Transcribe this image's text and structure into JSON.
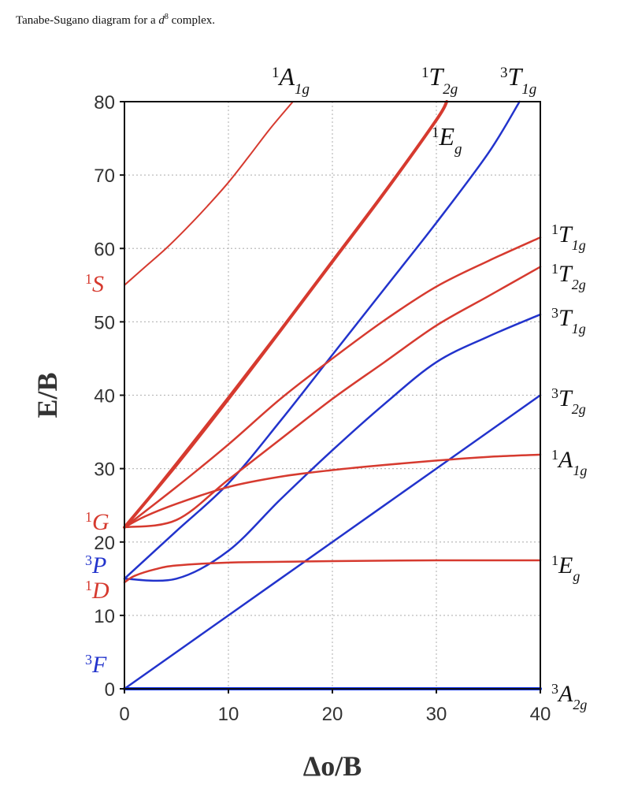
{
  "caption": {
    "prefix": "Tanabe-Sugano diagram for a ",
    "d": "d",
    "sup": "8",
    "suffix": " complex."
  },
  "chart_data": {
    "type": "line",
    "title": "Tanabe-Sugano diagram for a d8 complex.",
    "xlabel": "Δo/B",
    "ylabel": "E/B",
    "xlim": [
      0,
      40
    ],
    "ylim": [
      0,
      80
    ],
    "x_ticks": [
      "0",
      "10",
      "20",
      "30",
      "40"
    ],
    "y_ticks": [
      "0",
      "10",
      "20",
      "30",
      "40",
      "50",
      "60",
      "70",
      "80"
    ],
    "grid": true,
    "colors": {
      "singlet": "#d63a2f",
      "triplet": "#2233cc",
      "grid": "#bbbbbb"
    },
    "free_ion_terms": [
      {
        "sup": "1",
        "term": "S",
        "energy": 55,
        "color": "#d63a2f"
      },
      {
        "sup": "1",
        "term": "G",
        "energy": 22,
        "color": "#d63a2f"
      },
      {
        "sup": "3",
        "term": "P",
        "energy": 15,
        "color": "#2233cc"
      },
      {
        "sup": "1",
        "term": "D",
        "energy": 14.5,
        "color": "#d63a2f"
      },
      {
        "sup": "3",
        "term": "F",
        "energy": 0,
        "color": "#2233cc"
      }
    ],
    "series": [
      {
        "name": "1A1g (upper)",
        "sup": "1",
        "base": "A",
        "sub": "1g",
        "color": "#d63a2f",
        "width": 2,
        "x": [
          0,
          2,
          4,
          6,
          8,
          10,
          12,
          14,
          16.2
        ],
        "y": [
          55,
          57.5,
          60,
          62.8,
          65.8,
          69,
          72.6,
          76.3,
          80
        ]
      },
      {
        "name": "1T2g (upper)",
        "sup": "1",
        "base": "T",
        "sub": "2g",
        "color": "#d63a2f",
        "width": 4,
        "x": [
          0,
          5,
          10,
          15,
          20,
          25,
          30,
          31
        ],
        "y": [
          22,
          30.5,
          39.5,
          48.8,
          58.2,
          67.6,
          77.5,
          80
        ]
      },
      {
        "name": "1Eg (upper)",
        "sup": "1",
        "base": "E",
        "sub": "g",
        "color": "#d63a2f",
        "width": 2,
        "x": [
          0,
          5,
          10,
          15,
          20,
          25,
          30,
          31
        ],
        "y": [
          22,
          30.8,
          39.8,
          49,
          58.4,
          67.8,
          77.6,
          80
        ]
      },
      {
        "name": "3T1g (upper)",
        "sup": "3",
        "base": "T",
        "sub": "1g",
        "color": "#2233cc",
        "width": 2.5,
        "x": [
          0,
          5,
          10,
          15,
          20,
          25,
          30,
          35,
          38
        ],
        "y": [
          15,
          21.5,
          28,
          36.5,
          45.5,
          54.5,
          63.5,
          73,
          80
        ]
      },
      {
        "name": "1T1g",
        "sup": "1",
        "base": "T",
        "sub": "1g",
        "color": "#d63a2f",
        "width": 2.5,
        "x": [
          0,
          5,
          10,
          15,
          20,
          25,
          30,
          35,
          40
        ],
        "y": [
          22,
          27.5,
          33.3,
          39.5,
          45,
          50.2,
          54.8,
          58.3,
          61.5
        ]
      },
      {
        "name": "1T2g",
        "sup": "1",
        "base": "T",
        "sub": "2g",
        "color": "#d63a2f",
        "width": 2.5,
        "x": [
          0,
          5,
          10,
          15,
          20,
          25,
          30,
          35,
          40
        ],
        "y": [
          22,
          23,
          28.5,
          34,
          39.5,
          44.5,
          49.5,
          53.5,
          57.5
        ]
      },
      {
        "name": "3T1g",
        "sup": "3",
        "base": "T",
        "sub": "1g",
        "color": "#2233cc",
        "width": 2.5,
        "x": [
          0,
          5,
          10,
          15,
          20,
          25,
          30,
          35,
          40
        ],
        "y": [
          15,
          15,
          18.8,
          25.8,
          32.5,
          38.8,
          44.5,
          48,
          51
        ]
      },
      {
        "name": "3T2g",
        "sup": "3",
        "base": "T",
        "sub": "2g",
        "color": "#2233cc",
        "width": 2.5,
        "x": [
          0,
          10,
          20,
          30,
          40
        ],
        "y": [
          0,
          10,
          20,
          30,
          40
        ]
      },
      {
        "name": "1A1g",
        "sup": "1",
        "base": "A",
        "sub": "1g",
        "color": "#d63a2f",
        "width": 2.5,
        "x": [
          0,
          2,
          5,
          10,
          15,
          20,
          25,
          30,
          35,
          40
        ],
        "y": [
          22,
          23.5,
          25.2,
          27.5,
          28.9,
          29.8,
          30.5,
          31.1,
          31.6,
          31.9
        ]
      },
      {
        "name": "1Eg",
        "sup": "1",
        "base": "E",
        "sub": "g",
        "color": "#d63a2f",
        "width": 2.5,
        "x": [
          0,
          1,
          3,
          5,
          10,
          15,
          20,
          30,
          40
        ],
        "y": [
          14.5,
          15.4,
          16.3,
          16.8,
          17.2,
          17.3,
          17.4,
          17.5,
          17.5
        ]
      },
      {
        "name": "3A2g",
        "sup": "3",
        "base": "A",
        "sub": "2g",
        "color": "#1133ee",
        "width": 4,
        "x": [
          0,
          40
        ],
        "y": [
          0,
          0
        ]
      }
    ],
    "top_labels": [
      {
        "sup": "1",
        "base": "A",
        "sub": "1g",
        "color": "#111111"
      },
      {
        "sup": "1",
        "base": "T",
        "sub": "2g",
        "color": "#111111"
      },
      {
        "sup": "3",
        "base": "T",
        "sub": "1g",
        "color": "#111111"
      },
      {
        "sup": "1",
        "base": "E",
        "sub": "g",
        "color": "#111111"
      }
    ],
    "right_labels": [
      {
        "sup": "1",
        "base": "T",
        "sub": "1g",
        "color": "#111111"
      },
      {
        "sup": "1",
        "base": "T",
        "sub": "2g",
        "color": "#111111"
      },
      {
        "sup": "3",
        "base": "T",
        "sub": "1g",
        "color": "#111111"
      },
      {
        "sup": "3",
        "base": "T",
        "sub": "2g",
        "color": "#111111"
      },
      {
        "sup": "1",
        "base": "A",
        "sub": "1g",
        "color": "#111111"
      },
      {
        "sup": "1",
        "base": "E",
        "sub": "g",
        "color": "#111111"
      },
      {
        "sup": "3",
        "base": "A",
        "sub": "2g",
        "color": "#111111"
      }
    ]
  }
}
